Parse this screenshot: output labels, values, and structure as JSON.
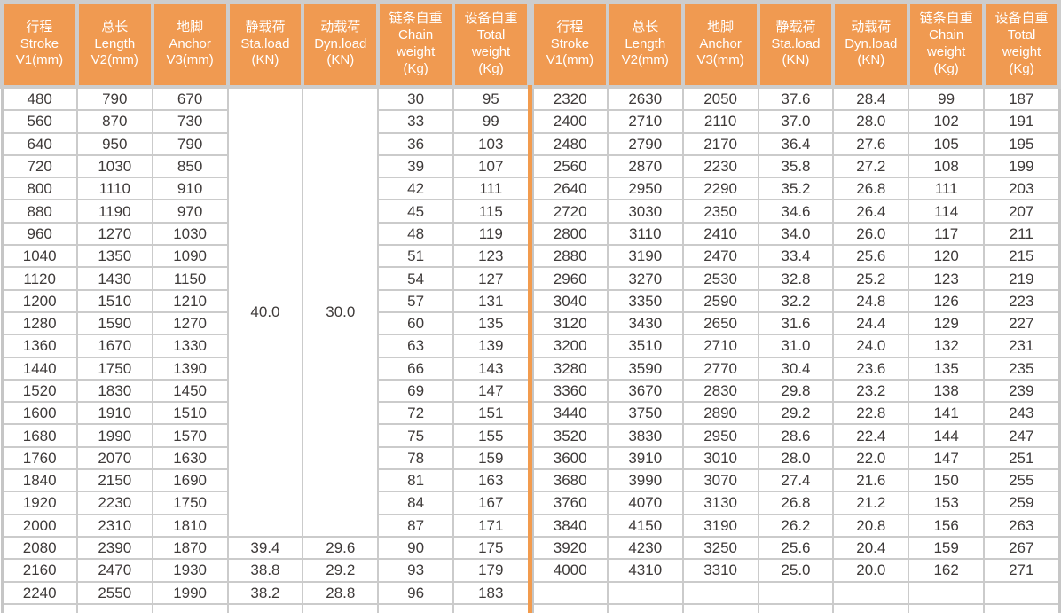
{
  "colors": {
    "header_bg": "#f09a51",
    "header_text": "#ffffff",
    "grid_line": "#cbcbcb",
    "outer_border": "#c6c6c6",
    "body_text": "#3e3a39",
    "divider_orange": "#f29b4d"
  },
  "table": {
    "columns": [
      {
        "lines": [
          "行程",
          "Stroke",
          "V1(mm)"
        ]
      },
      {
        "lines": [
          "总长",
          "Length",
          "V2(mm)"
        ]
      },
      {
        "lines": [
          "地脚",
          "Anchor",
          "V3(mm)"
        ]
      },
      {
        "lines": [
          "静载荷",
          "Sta.load",
          "(KN)"
        ]
      },
      {
        "lines": [
          "动载荷",
          "Dyn.load",
          "(KN)"
        ]
      },
      {
        "lines": [
          "链条自重",
          "Chain",
          "weight",
          "(Kg)"
        ]
      },
      {
        "lines": [
          "设备自重",
          "Total",
          "weight",
          "(Kg)"
        ]
      }
    ],
    "left": {
      "merged": {
        "start_row": 0,
        "row_span": 20,
        "columns": [
          3,
          4
        ],
        "values": [
          "40.0",
          "30.0"
        ]
      },
      "rows": [
        [
          "480",
          "790",
          "670",
          "",
          "",
          "30",
          "95"
        ],
        [
          "560",
          "870",
          "730",
          "",
          "",
          "33",
          "99"
        ],
        [
          "640",
          "950",
          "790",
          "",
          "",
          "36",
          "103"
        ],
        [
          "720",
          "1030",
          "850",
          "",
          "",
          "39",
          "107"
        ],
        [
          "800",
          "1110",
          "910",
          "",
          "",
          "42",
          "111"
        ],
        [
          "880",
          "1190",
          "970",
          "",
          "",
          "45",
          "115"
        ],
        [
          "960",
          "1270",
          "1030",
          "",
          "",
          "48",
          "119"
        ],
        [
          "1040",
          "1350",
          "1090",
          "",
          "",
          "51",
          "123"
        ],
        [
          "1120",
          "1430",
          "1150",
          "",
          "",
          "54",
          "127"
        ],
        [
          "1200",
          "1510",
          "1210",
          "",
          "",
          "57",
          "131"
        ],
        [
          "1280",
          "1590",
          "1270",
          "",
          "",
          "60",
          "135"
        ],
        [
          "1360",
          "1670",
          "1330",
          "",
          "",
          "63",
          "139"
        ],
        [
          "1440",
          "1750",
          "1390",
          "",
          "",
          "66",
          "143"
        ],
        [
          "1520",
          "1830",
          "1450",
          "",
          "",
          "69",
          "147"
        ],
        [
          "1600",
          "1910",
          "1510",
          "",
          "",
          "72",
          "151"
        ],
        [
          "1680",
          "1990",
          "1570",
          "",
          "",
          "75",
          "155"
        ],
        [
          "1760",
          "2070",
          "1630",
          "",
          "",
          "78",
          "159"
        ],
        [
          "1840",
          "2150",
          "1690",
          "",
          "",
          "81",
          "163"
        ],
        [
          "1920",
          "2230",
          "1750",
          "",
          "",
          "84",
          "167"
        ],
        [
          "2000",
          "2310",
          "1810",
          "",
          "",
          "87",
          "171"
        ],
        [
          "2080",
          "2390",
          "1870",
          "39.4",
          "29.6",
          "90",
          "175"
        ],
        [
          "2160",
          "2470",
          "1930",
          "38.8",
          "29.2",
          "93",
          "179"
        ],
        [
          "2240",
          "2550",
          "1990",
          "38.2",
          "28.8",
          "96",
          "183"
        ]
      ]
    },
    "right": {
      "merged": null,
      "rows": [
        [
          "2320",
          "2630",
          "2050",
          "37.6",
          "28.4",
          "99",
          "187"
        ],
        [
          "2400",
          "2710",
          "2110",
          "37.0",
          "28.0",
          "102",
          "191"
        ],
        [
          "2480",
          "2790",
          "2170",
          "36.4",
          "27.6",
          "105",
          "195"
        ],
        [
          "2560",
          "2870",
          "2230",
          "35.8",
          "27.2",
          "108",
          "199"
        ],
        [
          "2640",
          "2950",
          "2290",
          "35.2",
          "26.8",
          "111",
          "203"
        ],
        [
          "2720",
          "3030",
          "2350",
          "34.6",
          "26.4",
          "114",
          "207"
        ],
        [
          "2800",
          "3110",
          "2410",
          "34.0",
          "26.0",
          "117",
          "211"
        ],
        [
          "2880",
          "3190",
          "2470",
          "33.4",
          "25.6",
          "120",
          "215"
        ],
        [
          "2960",
          "3270",
          "2530",
          "32.8",
          "25.2",
          "123",
          "219"
        ],
        [
          "3040",
          "3350",
          "2590",
          "32.2",
          "24.8",
          "126",
          "223"
        ],
        [
          "3120",
          "3430",
          "2650",
          "31.6",
          "24.4",
          "129",
          "227"
        ],
        [
          "3200",
          "3510",
          "2710",
          "31.0",
          "24.0",
          "132",
          "231"
        ],
        [
          "3280",
          "3590",
          "2770",
          "30.4",
          "23.6",
          "135",
          "235"
        ],
        [
          "3360",
          "3670",
          "2830",
          "29.8",
          "23.2",
          "138",
          "239"
        ],
        [
          "3440",
          "3750",
          "2890",
          "29.2",
          "22.8",
          "141",
          "243"
        ],
        [
          "3520",
          "3830",
          "2950",
          "28.6",
          "22.4",
          "144",
          "247"
        ],
        [
          "3600",
          "3910",
          "3010",
          "28.0",
          "22.0",
          "147",
          "251"
        ],
        [
          "3680",
          "3990",
          "3070",
          "27.4",
          "21.6",
          "150",
          "255"
        ],
        [
          "3760",
          "4070",
          "3130",
          "26.8",
          "21.2",
          "153",
          "259"
        ],
        [
          "3840",
          "4150",
          "3190",
          "26.2",
          "20.8",
          "156",
          "263"
        ],
        [
          "3920",
          "4230",
          "3250",
          "25.6",
          "20.4",
          "159",
          "267"
        ],
        [
          "4000",
          "4310",
          "3310",
          "25.0",
          "20.0",
          "162",
          "271"
        ],
        [
          "",
          "",
          "",
          "",
          "",
          "",
          ""
        ]
      ]
    }
  }
}
